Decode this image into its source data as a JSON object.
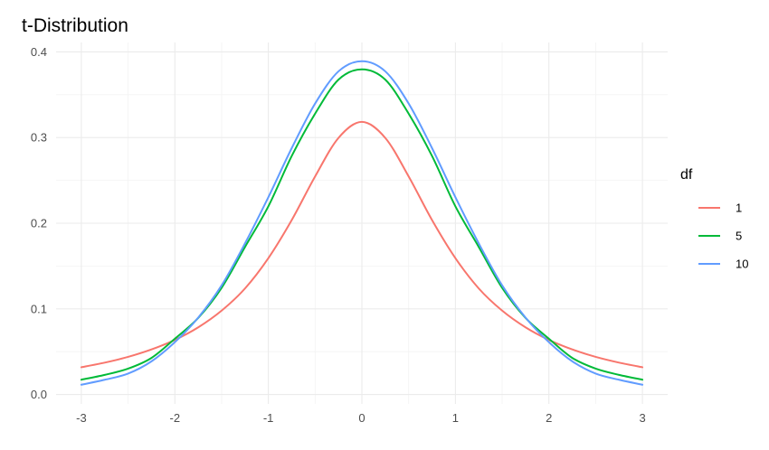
{
  "chart_data": {
    "type": "line",
    "title": "t-Distribution",
    "xlabel": "",
    "ylabel": "",
    "xlim": [
      -3,
      3
    ],
    "ylim": [
      0,
      0.4
    ],
    "x_ticks": [
      -3,
      -2,
      -1,
      0,
      1,
      2,
      3
    ],
    "x_tick_labels": [
      "-3",
      "-2",
      "-1",
      "0",
      "1",
      "2",
      "3"
    ],
    "y_ticks": [
      0,
      0.1,
      0.2,
      0.3,
      0.4
    ],
    "y_tick_labels": [
      "0.0",
      "0.1",
      "0.2",
      "0.3",
      "0.4"
    ],
    "grid": true,
    "legend": {
      "title": "df",
      "position": "right"
    },
    "x": [
      -3,
      -2.75,
      -2.5,
      -2.25,
      -2,
      -1.75,
      -1.5,
      -1.25,
      -1,
      -0.75,
      -0.5,
      -0.25,
      0,
      0.25,
      0.5,
      0.75,
      1,
      1.25,
      1.5,
      1.75,
      2,
      2.25,
      2.5,
      2.75,
      3
    ],
    "series": [
      {
        "name": "1",
        "color": "#f8766d",
        "values": [
          0.0318,
          0.0372,
          0.0439,
          0.0526,
          0.0637,
          0.0784,
          0.0979,
          0.1238,
          0.1592,
          0.2037,
          0.2546,
          0.2996,
          0.3183,
          0.2996,
          0.2546,
          0.2037,
          0.1592,
          0.1238,
          0.0979,
          0.0784,
          0.0637,
          0.0526,
          0.0439,
          0.0372,
          0.0318
        ]
      },
      {
        "name": "5",
        "color": "#00ba38",
        "values": [
          0.0173,
          0.0229,
          0.0302,
          0.0427,
          0.0651,
          0.0894,
          0.1245,
          0.1722,
          0.2197,
          0.2785,
          0.3279,
          0.3676,
          0.3796,
          0.3676,
          0.3279,
          0.2785,
          0.2197,
          0.1722,
          0.1245,
          0.0894,
          0.0651,
          0.0427,
          0.0302,
          0.0229,
          0.0173
        ]
      },
      {
        "name": "10",
        "color": "#619cff",
        "values": [
          0.0114,
          0.0172,
          0.0244,
          0.0387,
          0.0611,
          0.0898,
          0.1274,
          0.1764,
          0.2304,
          0.2877,
          0.3397,
          0.3773,
          0.3891,
          0.3773,
          0.3397,
          0.2877,
          0.2304,
          0.1764,
          0.1274,
          0.0898,
          0.0611,
          0.0387,
          0.0244,
          0.0172,
          0.0114
        ]
      }
    ]
  }
}
